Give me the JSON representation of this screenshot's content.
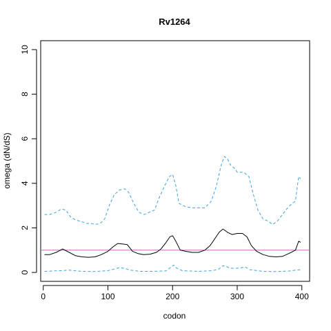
{
  "chart_data": {
    "type": "line",
    "title": "Rv1264",
    "xlabel": "codon",
    "ylabel": "omega (dN/dS)",
    "xlim": [
      -4,
      412
    ],
    "ylim": [
      -0.4,
      10.4
    ],
    "xticks": [
      0,
      100,
      200,
      300,
      400
    ],
    "yticks": [
      0,
      2,
      4,
      6,
      8,
      10
    ],
    "xtick_labels": [
      "0",
      "100",
      "200",
      "300",
      "400"
    ],
    "ytick_labels": [
      "0",
      "2",
      "4",
      "6",
      "8",
      "10"
    ],
    "reference_line": {
      "y": 1,
      "color": "#cc66cc"
    },
    "grid": false,
    "series": [
      {
        "role": "upper",
        "color": "#3aa3e0",
        "style": "dashed",
        "x": [
          2,
          10,
          20,
          28,
          35,
          42,
          50,
          58,
          66,
          74,
          80,
          88,
          95,
          102,
          110,
          118,
          126,
          132,
          140,
          148,
          156,
          164,
          172,
          180,
          188,
          195,
          200,
          205,
          210,
          220,
          230,
          240,
          250,
          260,
          268,
          275,
          280,
          285,
          290,
          295,
          300,
          310,
          318,
          325,
          332,
          340,
          348,
          355,
          362,
          370,
          378,
          385,
          390,
          395,
          398
        ],
        "y": [
          2.6,
          2.6,
          2.7,
          2.85,
          2.8,
          2.5,
          2.35,
          2.3,
          2.2,
          2.2,
          2.15,
          2.2,
          2.4,
          3.0,
          3.5,
          3.7,
          3.75,
          3.6,
          3.1,
          2.7,
          2.6,
          2.7,
          2.8,
          3.4,
          3.9,
          4.3,
          4.4,
          3.9,
          3.1,
          2.95,
          2.9,
          2.9,
          2.9,
          3.2,
          3.9,
          4.8,
          5.2,
          5.1,
          4.8,
          4.7,
          4.5,
          4.5,
          4.3,
          3.5,
          2.8,
          2.4,
          2.3,
          2.15,
          2.3,
          2.6,
          2.9,
          3.1,
          3.2,
          4.3,
          4.2
        ]
      },
      {
        "role": "mean",
        "color": "#000000",
        "style": "solid",
        "x": [
          2,
          10,
          20,
          30,
          40,
          50,
          60,
          70,
          80,
          90,
          100,
          108,
          115,
          122,
          130,
          138,
          146,
          155,
          165,
          175,
          182,
          190,
          196,
          200,
          205,
          212,
          220,
          230,
          240,
          250,
          258,
          265,
          272,
          278,
          285,
          292,
          300,
          308,
          315,
          322,
          330,
          340,
          350,
          360,
          370,
          380,
          390,
          395,
          398
        ],
        "y": [
          0.8,
          0.8,
          0.9,
          1.05,
          0.9,
          0.75,
          0.7,
          0.68,
          0.7,
          0.8,
          0.95,
          1.15,
          1.3,
          1.28,
          1.25,
          0.95,
          0.85,
          0.8,
          0.82,
          0.9,
          1.05,
          1.35,
          1.6,
          1.65,
          1.4,
          1.0,
          0.95,
          0.9,
          0.9,
          1.0,
          1.2,
          1.5,
          1.8,
          1.95,
          1.8,
          1.7,
          1.75,
          1.75,
          1.6,
          1.2,
          0.95,
          0.8,
          0.72,
          0.7,
          0.72,
          0.85,
          1.0,
          1.4,
          1.35
        ]
      },
      {
        "role": "lower",
        "color": "#3aa3e0",
        "style": "dashed",
        "x": [
          2,
          20,
          40,
          60,
          80,
          100,
          110,
          118,
          126,
          135,
          150,
          170,
          190,
          198,
          202,
          206,
          215,
          240,
          260,
          270,
          278,
          282,
          288,
          296,
          305,
          312,
          320,
          340,
          360,
          380,
          390,
          398
        ],
        "y": [
          0.05,
          0.07,
          0.1,
          0.05,
          0.04,
          0.08,
          0.15,
          0.22,
          0.18,
          0.1,
          0.05,
          0.05,
          0.07,
          0.25,
          0.33,
          0.2,
          0.08,
          0.05,
          0.08,
          0.12,
          0.3,
          0.28,
          0.2,
          0.18,
          0.2,
          0.25,
          0.12,
          0.05,
          0.04,
          0.06,
          0.1,
          0.12
        ]
      }
    ]
  }
}
